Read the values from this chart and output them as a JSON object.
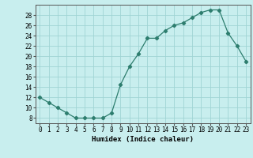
{
  "x": [
    0,
    1,
    2,
    3,
    4,
    5,
    6,
    7,
    8,
    9,
    10,
    11,
    12,
    13,
    14,
    15,
    16,
    17,
    18,
    19,
    20,
    21,
    22,
    23
  ],
  "y": [
    12,
    11,
    10,
    9,
    8,
    8,
    8,
    8,
    9,
    14.5,
    18,
    20.5,
    23.5,
    23.5,
    25,
    26,
    26.5,
    27.5,
    28.5,
    29,
    29,
    24.5,
    22,
    19
  ],
  "line_color": "#2d7d6e",
  "bg_color": "#c8eeee",
  "grid_color": "#a0d4d4",
  "xlabel": "Humidex (Indice chaleur)",
  "ylim": [
    7,
    30
  ],
  "yticks": [
    8,
    10,
    12,
    14,
    16,
    18,
    20,
    22,
    24,
    26,
    28
  ],
  "xlim": [
    -0.5,
    23.5
  ],
  "xticks": [
    0,
    1,
    2,
    3,
    4,
    5,
    6,
    7,
    8,
    9,
    10,
    11,
    12,
    13,
    14,
    15,
    16,
    17,
    18,
    19,
    20,
    21,
    22,
    23
  ],
  "tick_fontsize": 5.5,
  "axis_fontsize": 6.5
}
